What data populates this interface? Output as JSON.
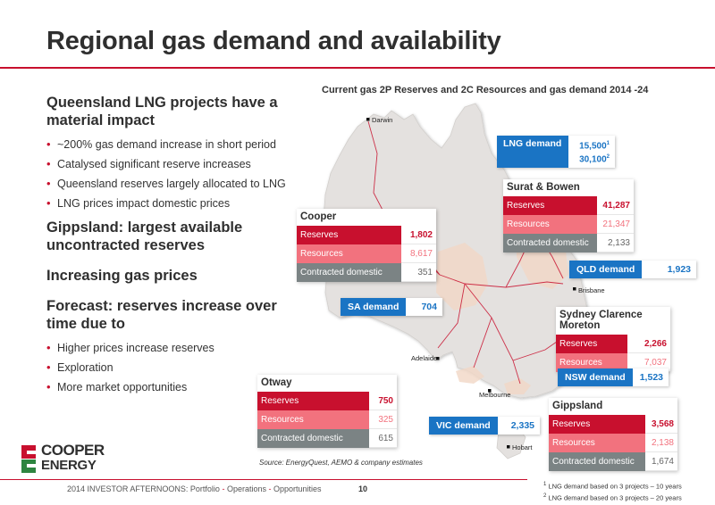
{
  "title": "Regional gas demand and availability",
  "left": {
    "sections": [
      {
        "heading": "Queensland LNG projects have a material impact",
        "bullets": [
          "~200% gas demand increase in short period",
          "Catalysed significant reserve increases",
          "Queensland reserves largely allocated to LNG",
          "LNG prices impact domestic prices"
        ]
      },
      {
        "heading": "Gippsland: largest available uncontracted reserves",
        "bullets": []
      },
      {
        "heading": "Increasing gas prices",
        "bullets": []
      },
      {
        "heading": "Forecast: reserves increase over time due to",
        "bullets": [
          "Higher prices increase reserves",
          "Exploration",
          "More market opportunities"
        ]
      }
    ]
  },
  "map": {
    "title": "Current gas 2P Reserves and 2C Resources and gas demand 2014 -24",
    "cities": [
      "Darwin",
      "Brisbane",
      "Adelaide",
      "Melbourne",
      "Hobart"
    ]
  },
  "basins": {
    "cooper": {
      "name": "Cooper",
      "reserves_label": "Reserves",
      "reserves": "1,802",
      "resources_label": "Resources",
      "resources": "8,617",
      "contracted_label": "Contracted domestic",
      "contracted": "351"
    },
    "surat": {
      "name": "Surat & Bowen",
      "reserves_label": "Reserves",
      "reserves": "41,287",
      "resources_label": "Resources",
      "resources": "21,347",
      "contracted_label": "Contracted domestic",
      "contracted": "2,133"
    },
    "sydney": {
      "name": "Sydney Clarence Moreton",
      "reserves_label": "Reserves",
      "reserves": "2,266",
      "resources_label": "Resources",
      "resources": "7,037"
    },
    "otway": {
      "name": "Otway",
      "reserves_label": "Reserves",
      "reserves": "750",
      "resources_label": "Resources",
      "resources": "325",
      "contracted_label": "Contracted domestic",
      "contracted": "615"
    },
    "gippsland": {
      "name": "Gippsland",
      "reserves_label": "Reserves",
      "reserves": "3,568",
      "resources_label": "Resources",
      "resources": "2,138",
      "contracted_label": "Contracted domestic",
      "contracted": "1,674"
    }
  },
  "demand": {
    "lng": {
      "label": "LNG demand",
      "value1": "15,500",
      "sup1": "1",
      "value2": "30,100",
      "sup2": "2"
    },
    "qld": {
      "label": "QLD demand",
      "value": "1,923"
    },
    "sa": {
      "label": "SA demand",
      "value": "704"
    },
    "nsw": {
      "label": "NSW demand",
      "value": "1,523"
    },
    "vic": {
      "label": "VIC demand",
      "value": "2,335"
    }
  },
  "source": "Source: EnergyQuest, AEMO & company estimates",
  "footnotes": [
    {
      "sup": "1",
      "text": "LNG demand based on 3 projects – 10 years"
    },
    {
      "sup": "2",
      "text": "LNG demand based on 3 projects – 20 years"
    }
  ],
  "footer": {
    "event": "2014 INVESTOR AFTERNOONS:",
    "items": [
      "Portfolio",
      "Operations",
      "Opportunities"
    ],
    "separator": "-",
    "page": "10"
  },
  "logo": {
    "line1": "COOPER",
    "line2": "ENERGY"
  },
  "colors": {
    "accent": "#c8102e",
    "resources": "#f2727e",
    "contracted": "#7b8384",
    "demand": "#1a74c4"
  }
}
